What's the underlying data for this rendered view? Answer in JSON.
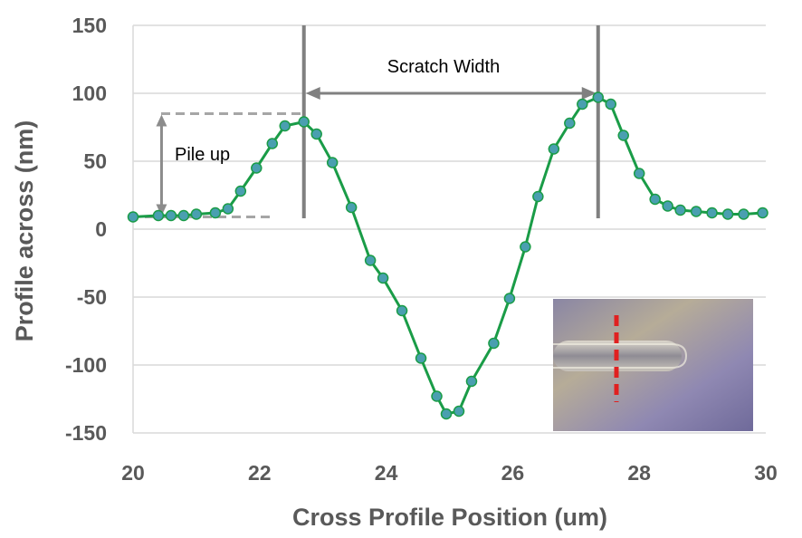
{
  "chart_data": {
    "type": "line",
    "xlabel": "Cross Profile Position (um)",
    "ylabel": "Profile across (nm)",
    "xlim": [
      20,
      30
    ],
    "ylim": [
      -150,
      150
    ],
    "xticks": [
      20,
      22,
      24,
      26,
      28,
      30
    ],
    "yticks": [
      150,
      100,
      50,
      0,
      -50,
      -100,
      -150
    ],
    "grid": "horizontal",
    "series": [
      {
        "color": "#1a9c47",
        "marker_color": "#4a9fb0",
        "points": [
          [
            20.0,
            9
          ],
          [
            20.4,
            10
          ],
          [
            20.6,
            10
          ],
          [
            20.8,
            10
          ],
          [
            21.0,
            11
          ],
          [
            21.3,
            12
          ],
          [
            21.5,
            15
          ],
          [
            21.7,
            28
          ],
          [
            21.95,
            45
          ],
          [
            22.2,
            63
          ],
          [
            22.4,
            76
          ],
          [
            22.7,
            79
          ],
          [
            22.9,
            70
          ],
          [
            23.15,
            49
          ],
          [
            23.45,
            16
          ],
          [
            23.75,
            -23
          ],
          [
            23.95,
            -36
          ],
          [
            24.25,
            -60
          ],
          [
            24.55,
            -95
          ],
          [
            24.8,
            -123
          ],
          [
            24.95,
            -136
          ],
          [
            25.15,
            -134
          ],
          [
            25.35,
            -112
          ],
          [
            25.7,
            -84
          ],
          [
            25.95,
            -51
          ],
          [
            26.2,
            -13
          ],
          [
            26.4,
            24
          ],
          [
            26.65,
            59
          ],
          [
            26.9,
            78
          ],
          [
            27.1,
            92
          ],
          [
            27.35,
            97
          ],
          [
            27.55,
            92
          ],
          [
            27.75,
            69
          ],
          [
            28.0,
            41
          ],
          [
            28.25,
            22
          ],
          [
            28.45,
            17
          ],
          [
            28.65,
            14
          ],
          [
            28.9,
            13
          ],
          [
            29.15,
            12
          ],
          [
            29.4,
            11
          ],
          [
            29.65,
            11
          ],
          [
            29.95,
            12
          ]
        ]
      }
    ],
    "annotations": {
      "scratch_width_label": "Scratch Width",
      "pile_up_label": "Pile up",
      "scratch_width_x": [
        22.7,
        27.35
      ],
      "scratch_width_y": 100,
      "pile_up_x": 20.45,
      "pile_up_y": [
        9,
        85
      ]
    }
  },
  "inset": {
    "description_icon": "microscope-photo",
    "marker_color": "#e02020"
  }
}
